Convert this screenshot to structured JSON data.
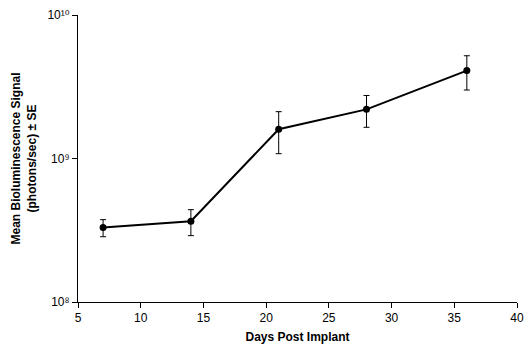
{
  "chart_data": {
    "type": "line",
    "xlabel": "Days Post Implant",
    "ylabel": [
      "Mean Bioluminescence Signal",
      "(photons/sec) ± SE"
    ],
    "x": [
      7,
      14,
      21,
      28,
      36
    ],
    "values": [
      330000000,
      365000000,
      1600000000,
      2200000000,
      4100000000
    ],
    "errors": [
      45000000,
      75000000,
      520000000,
      550000000,
      1100000000
    ],
    "color": "#000000",
    "marker": "circle",
    "line_style": "solid",
    "log": "y",
    "grid": false,
    "xlim": [
      5,
      40
    ],
    "xticks": [
      5,
      10,
      15,
      20,
      25,
      30,
      35,
      40
    ],
    "ylim": [
      100000000,
      10000000000
    ],
    "yticks": [
      {
        "value": 100000000,
        "label": "10⁸"
      },
      {
        "value": 1000000000,
        "label": "10⁹"
      },
      {
        "value": 10000000000,
        "label": "10¹⁰"
      }
    ]
  }
}
